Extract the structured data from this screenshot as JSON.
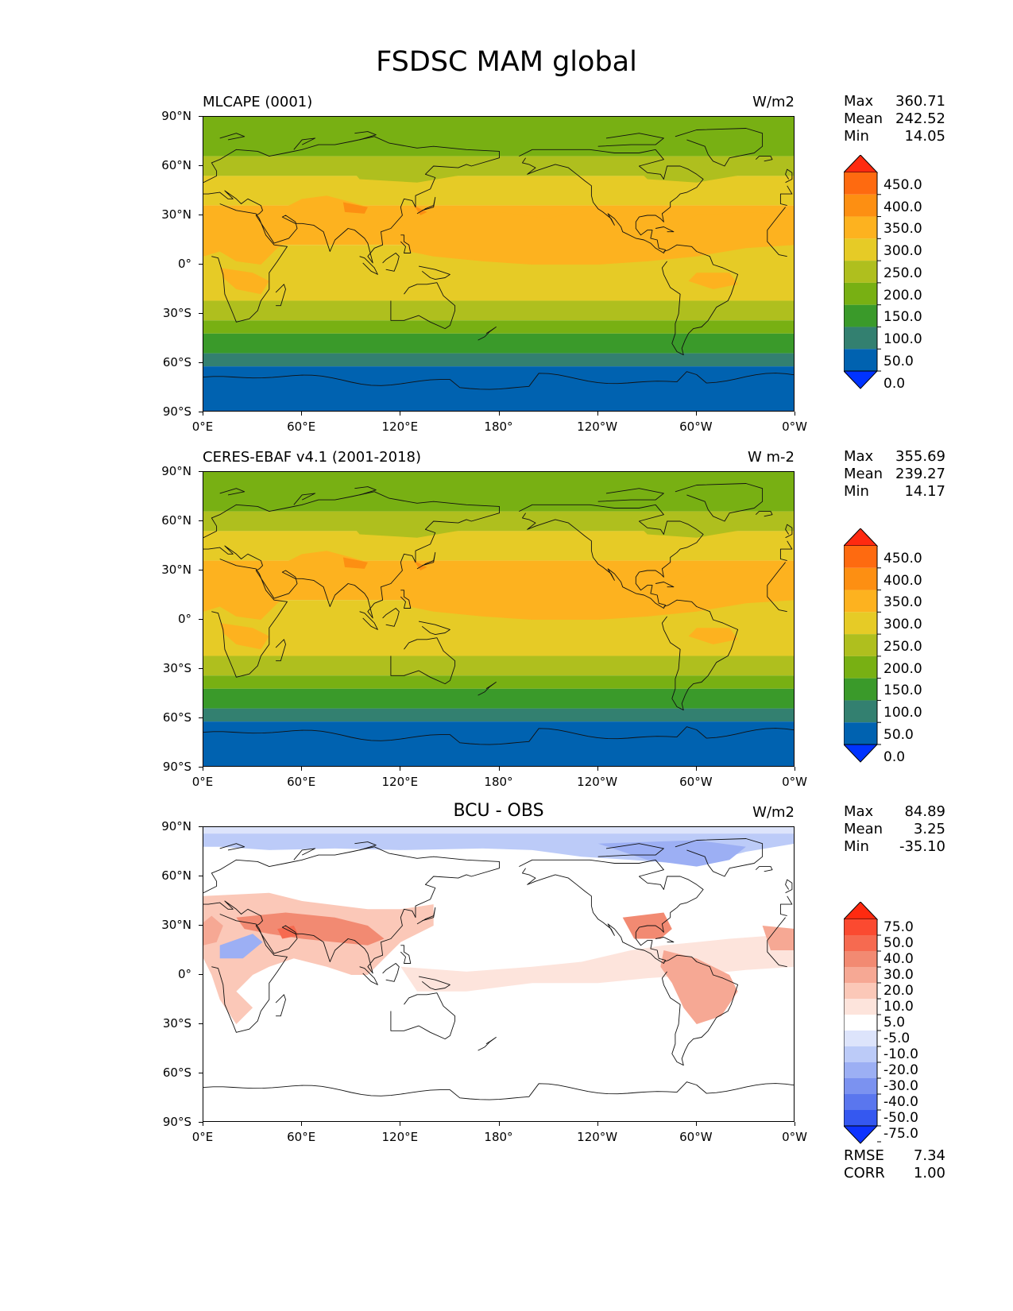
{
  "figure_title": "FSDSC MAM global",
  "lat_labels": [
    "90°N",
    "60°N",
    "30°N",
    "0°",
    "30°S",
    "60°S",
    "90°S"
  ],
  "lon_labels": [
    "0°E",
    "60°E",
    "120°E",
    "180°",
    "120°W",
    "60°W",
    "0°W"
  ],
  "panels": [
    {
      "title": "MLCAPE (0001)",
      "units": "W/m2",
      "stats": {
        "max_label": "Max",
        "max": "360.71",
        "mean_label": "Mean",
        "mean": "242.52",
        "min_label": "Min",
        "min": "14.05"
      },
      "colorbar": {
        "labels": [
          "450.0",
          "400.0",
          "350.0",
          "300.0",
          "250.0",
          "200.0",
          "150.0",
          "100.0",
          "50.0",
          "0.0"
        ],
        "colors": [
          "#ff2a10",
          "#fe6a10",
          "#fd8f12",
          "#fdb21f",
          "#e6cb26",
          "#afbf1e",
          "#78b013",
          "#3a9a2a",
          "#338070",
          "#0062b0",
          "#0033ff"
        ]
      }
    },
    {
      "title": "CERES-EBAF v4.1 (2001-2018)",
      "units": "W m-2",
      "stats": {
        "max_label": "Max",
        "max": "355.69",
        "mean_label": "Mean",
        "mean": "239.27",
        "min_label": "Min",
        "min": "14.17"
      },
      "colorbar": {
        "labels": [
          "450.0",
          "400.0",
          "350.0",
          "300.0",
          "250.0",
          "200.0",
          "150.0",
          "100.0",
          "50.0",
          "0.0"
        ],
        "colors": [
          "#ff2a10",
          "#fe6a10",
          "#fd8f12",
          "#fdb21f",
          "#e6cb26",
          "#afbf1e",
          "#78b013",
          "#3a9a2a",
          "#338070",
          "#0062b0",
          "#0033ff"
        ]
      }
    },
    {
      "title": "BCU - OBS",
      "units": "W/m2",
      "stats": {
        "max_label": "Max",
        "max": "84.89",
        "mean_label": "Mean",
        "mean": "3.25",
        "min_label": "Min",
        "min": "-35.10"
      },
      "colorbar": {
        "labels": [
          "75.0",
          "50.0",
          "40.0",
          "30.0",
          "20.0",
          "10.0",
          "5.0",
          "-5.0",
          "-10.0",
          "-20.0",
          "-30.0",
          "-40.0",
          "-50.0",
          "-75.0"
        ],
        "colors": [
          "#ff2a10",
          "#fb4a30",
          "#f66a50",
          "#f28a72",
          "#f6a894",
          "#fbc8b8",
          "#fde4dc",
          "#ffffff",
          "#dde4fb",
          "#bccbf8",
          "#9caff4",
          "#7b92f0",
          "#5a76ee",
          "#3558f0",
          "#0d33ff"
        ]
      },
      "bottom_stats": {
        "rmse_label": "RMSE",
        "rmse": "7.34",
        "corr_label": "CORR",
        "corr": "1.00"
      }
    }
  ]
}
